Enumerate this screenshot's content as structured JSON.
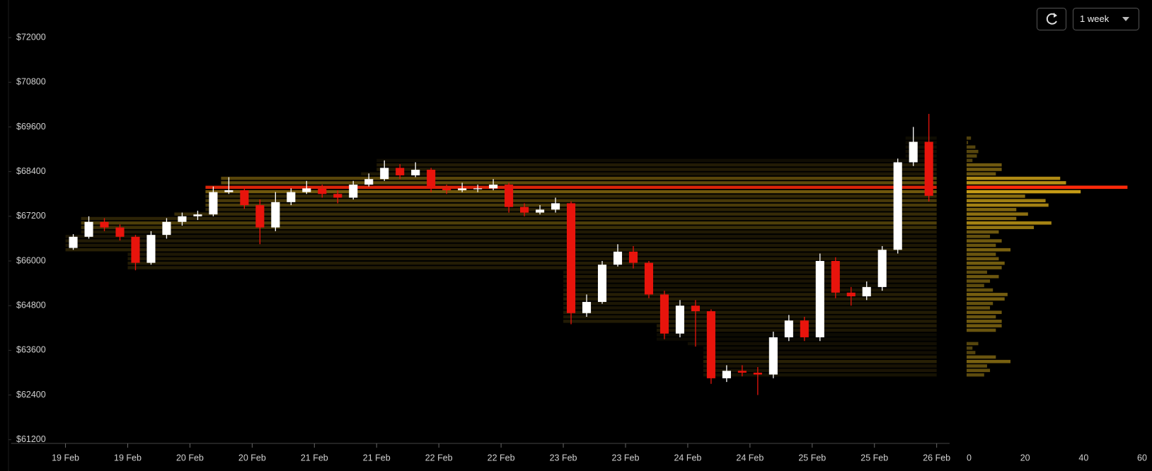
{
  "toolbar": {
    "range_label": "1 week"
  },
  "chart_data": {
    "type": "candlestick",
    "x": [
      0,
      3,
      6,
      9,
      12,
      15,
      18,
      21,
      24,
      27,
      30,
      33,
      36,
      39,
      42,
      45,
      48,
      51,
      54,
      57,
      60,
      63,
      66,
      69,
      72,
      75,
      78,
      81,
      84,
      87,
      90,
      93,
      96,
      99,
      102,
      105,
      108,
      111,
      114,
      117,
      120,
      123,
      126,
      129,
      132,
      135,
      138,
      141,
      144,
      147,
      150,
      153,
      156,
      159,
      162,
      165
    ],
    "open": [
      66350,
      66650,
      67050,
      66900,
      66650,
      65950,
      66700,
      67050,
      67200,
      67250,
      67850,
      67900,
      67500,
      66900,
      67580,
      67850,
      67950,
      67800,
      67700,
      68050,
      68200,
      68500,
      68300,
      68450,
      67950,
      67900,
      67950,
      67950,
      68050,
      67450,
      67300,
      67380,
      67550,
      64600,
      64900,
      65900,
      66250,
      65950,
      65100,
      64050,
      64800,
      64650,
      62850,
      63050,
      63000,
      62950,
      63950,
      64400,
      63950,
      66000,
      65150,
      65050,
      65300,
      66300,
      68650,
      69200
    ],
    "high": [
      66720,
      67200,
      67150,
      66980,
      66700,
      66800,
      67150,
      67300,
      67350,
      68000,
      68250,
      68000,
      67650,
      67850,
      67950,
      68150,
      68050,
      67900,
      68150,
      68350,
      68700,
      68600,
      68650,
      68500,
      68050,
      68100,
      68050,
      68200,
      68100,
      67550,
      67500,
      67700,
      67600,
      65100,
      66000,
      66450,
      66400,
      66000,
      65200,
      64950,
      64950,
      64700,
      63200,
      63200,
      63150,
      64100,
      64550,
      64500,
      66200,
      66100,
      65300,
      65450,
      66400,
      68750,
      69600,
      69950
    ],
    "low": [
      66300,
      66600,
      66800,
      66550,
      65750,
      65900,
      66600,
      66950,
      67100,
      67200,
      67800,
      67400,
      66450,
      66800,
      67500,
      67800,
      67700,
      67550,
      67650,
      68000,
      68150,
      68200,
      68250,
      67850,
      67800,
      67850,
      67850,
      67900,
      67300,
      67200,
      67250,
      67300,
      64300,
      64500,
      64850,
      65850,
      65800,
      65000,
      63900,
      63950,
      63700,
      62700,
      62750,
      62900,
      62400,
      62850,
      63850,
      63850,
      63850,
      65000,
      64800,
      64950,
      65200,
      66200,
      68550,
      67600
    ],
    "close": [
      66650,
      67050,
      66900,
      66650,
      65950,
      66700,
      67050,
      67200,
      67250,
      67850,
      67900,
      67500,
      66900,
      67580,
      67850,
      67950,
      67800,
      67700,
      68050,
      68200,
      68500,
      68300,
      68450,
      67950,
      67900,
      67950,
      67950,
      68050,
      67450,
      67300,
      67380,
      67550,
      64600,
      64900,
      65900,
      66250,
      65950,
      65100,
      64050,
      64800,
      64650,
      62850,
      63050,
      63000,
      62950,
      63950,
      64400,
      63950,
      66000,
      65150,
      65050,
      65300,
      66300,
      68650,
      69200,
      67750
    ],
    "up_color": "#ffffff",
    "down_color": "#e8140c",
    "interval": 3,
    "xlim": [
      -10.5,
      170.5
    ],
    "xticks": [
      {
        "value": 0,
        "label": "19 Feb"
      },
      {
        "value": 12,
        "label": "19 Feb"
      },
      {
        "value": 24,
        "label": "20 Feb"
      },
      {
        "value": 36,
        "label": "20 Feb"
      },
      {
        "value": 48,
        "label": "21 Feb"
      },
      {
        "value": 60,
        "label": "21 Feb"
      },
      {
        "value": 72,
        "label": "22 Feb"
      },
      {
        "value": 84,
        "label": "22 Feb"
      },
      {
        "value": 96,
        "label": "23 Feb"
      },
      {
        "value": 108,
        "label": "23 Feb"
      },
      {
        "value": 120,
        "label": "24 Feb"
      },
      {
        "value": 132,
        "label": "24 Feb"
      },
      {
        "value": 144,
        "label": "25 Feb"
      },
      {
        "value": 156,
        "label": "25 Feb"
      },
      {
        "value": 168,
        "label": "26 Feb"
      }
    ],
    "ylim": [
      61100,
      72800
    ],
    "yticks": [
      {
        "value": 72000,
        "label": "$72000"
      },
      {
        "value": 70800,
        "label": "$70800"
      },
      {
        "value": 69600,
        "label": "$69600"
      },
      {
        "value": 68400,
        "label": "$68400"
      },
      {
        "value": 67200,
        "label": "$67200"
      },
      {
        "value": 66000,
        "label": "$66000"
      },
      {
        "value": 64800,
        "label": "$64800"
      },
      {
        "value": 63600,
        "label": "$63600"
      },
      {
        "value": 62400,
        "label": "$62400"
      },
      {
        "value": 61200,
        "label": "$61200"
      }
    ],
    "profile": {
      "levels": [
        69300,
        69180,
        69060,
        68940,
        68820,
        68700,
        68580,
        68460,
        68340,
        68220,
        68100,
        67980,
        67860,
        67740,
        67620,
        67500,
        67380,
        67260,
        67140,
        67020,
        66900,
        66780,
        66660,
        66540,
        66420,
        66300,
        66180,
        66060,
        65940,
        65820,
        65700,
        65580,
        65460,
        65340,
        65220,
        65100,
        64980,
        64860,
        64740,
        64620,
        64500,
        64380,
        64260,
        64140,
        64020,
        63900,
        63780,
        63660,
        63540,
        63420,
        63300,
        63180,
        63060,
        62940
      ],
      "volumes": [
        1.5,
        0.5,
        3,
        4,
        3.5,
        2,
        12,
        12,
        10,
        32,
        34,
        55,
        39,
        20,
        27,
        28,
        17,
        21,
        17,
        29,
        23,
        11,
        8,
        12,
        10,
        15,
        10,
        11,
        13,
        12,
        7,
        11,
        8,
        6,
        9,
        14,
        13,
        9,
        8,
        12,
        10,
        12,
        12,
        10,
        0,
        0,
        4,
        2,
        3,
        10,
        15,
        7,
        8,
        6
      ],
      "xlim": [
        0,
        60
      ],
      "xticks": [
        0,
        20,
        40,
        60
      ],
      "color_low": "#4a3c0c",
      "color_high": "#f7c21a",
      "max_color": "#ff2a0a"
    }
  }
}
